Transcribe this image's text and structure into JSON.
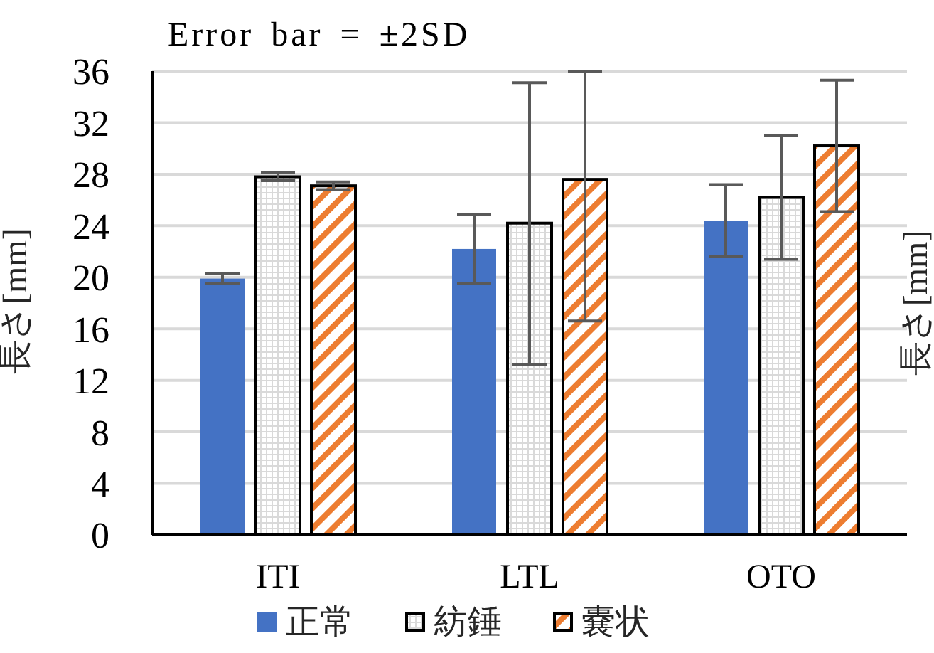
{
  "chart_data": {
    "type": "bar",
    "title": "Error bar = ±2SD",
    "ylabel": "長さ[mm]",
    "y2label": "長さ[mm]",
    "categories": [
      "ITI",
      "LTL",
      "OTO"
    ],
    "series": [
      {
        "name": "正常",
        "color": "#4472c4",
        "values": [
          19.9,
          22.2,
          24.4
        ],
        "errors": [
          [
            19.5,
            20.3
          ],
          [
            19.5,
            24.9
          ],
          [
            21.6,
            27.2
          ]
        ]
      },
      {
        "name": "紡錘",
        "color": "#d9d9d9",
        "values": [
          27.8,
          24.2,
          26.2
        ],
        "errors": [
          [
            27.5,
            28.1
          ],
          [
            13.2,
            35.1
          ],
          [
            21.4,
            31.0
          ]
        ]
      },
      {
        "name": "嚢状",
        "color": "#ed7d31",
        "values": [
          27.1,
          27.6,
          30.2
        ],
        "errors": [
          [
            26.8,
            27.4
          ],
          [
            16.6,
            36
          ],
          [
            25.1,
            35.3
          ]
        ]
      }
    ],
    "ylim": [
      0,
      36
    ],
    "yticks": [
      0,
      4,
      8,
      12,
      16,
      20,
      24,
      28,
      32,
      36
    ],
    "grid": "y",
    "legend": "bottom"
  }
}
